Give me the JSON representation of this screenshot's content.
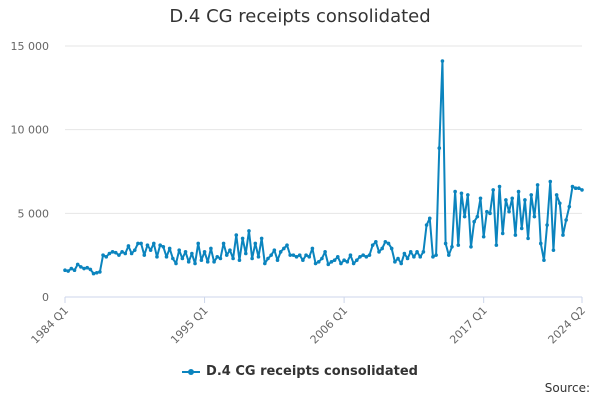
{
  "chart_data": {
    "type": "line",
    "title": "D.4 CG receipts consolidated",
    "xlabel": "",
    "ylabel": "",
    "ylim": [
      0,
      15000
    ],
    "yticks": [
      0,
      5000,
      10000,
      15000
    ],
    "ytick_labels": [
      "0",
      "5 000",
      "10 000",
      "15 000"
    ],
    "xtick_labels": [
      "1984 Q1",
      "1995 Q1",
      "2006 Q1",
      "2017 Q1",
      "2024 Q2"
    ],
    "grid": true,
    "legend_position": "bottom",
    "source_label": "Source:",
    "series": [
      {
        "name": "D.4 CG receipts consolidated",
        "color": "#0b84be",
        "values": [
          1600,
          1550,
          1700,
          1600,
          1950,
          1800,
          1700,
          1750,
          1650,
          1400,
          1450,
          1500,
          2500,
          2400,
          2600,
          2700,
          2650,
          2500,
          2700,
          2600,
          3050,
          2600,
          2800,
          3200,
          3200,
          2500,
          3100,
          2800,
          3200,
          2400,
          3100,
          3000,
          2400,
          2900,
          2300,
          2000,
          2800,
          2300,
          2700,
          2100,
          2600,
          2000,
          3200,
          2200,
          2700,
          2100,
          2900,
          2100,
          2400,
          2300,
          3200,
          2500,
          2800,
          2300,
          3700,
          2200,
          3500,
          2600,
          3950,
          2300,
          3200,
          2400,
          3500,
          2000,
          2300,
          2500,
          2800,
          2200,
          2700,
          2900,
          3100,
          2500,
          2500,
          2400,
          2500,
          2200,
          2500,
          2400,
          2900,
          2000,
          2100,
          2300,
          2700,
          1950,
          2100,
          2200,
          2400,
          2000,
          2200,
          2100,
          2500,
          2000,
          2200,
          2400,
          2500,
          2400,
          2500,
          3100,
          3300,
          2700,
          2900,
          3300,
          3200,
          2900,
          2100,
          2300,
          2000,
          2600,
          2300,
          2700,
          2400,
          2700,
          2400,
          2700,
          4300,
          4700,
          2400,
          2500,
          8900,
          14100,
          3200,
          2500,
          3000,
          6300,
          3100,
          6200,
          4800,
          6100,
          3000,
          4500,
          4800,
          5900,
          3600,
          5100,
          5000,
          6400,
          3100,
          6600,
          3800,
          5800,
          5100,
          5900,
          3700,
          6300,
          4100,
          5800,
          3500,
          6100,
          4800,
          6700,
          3200,
          2200,
          4300,
          6900,
          2800,
          6100,
          5600,
          3700,
          4600,
          5400,
          6600,
          6500,
          6500,
          6400
        ]
      }
    ]
  }
}
